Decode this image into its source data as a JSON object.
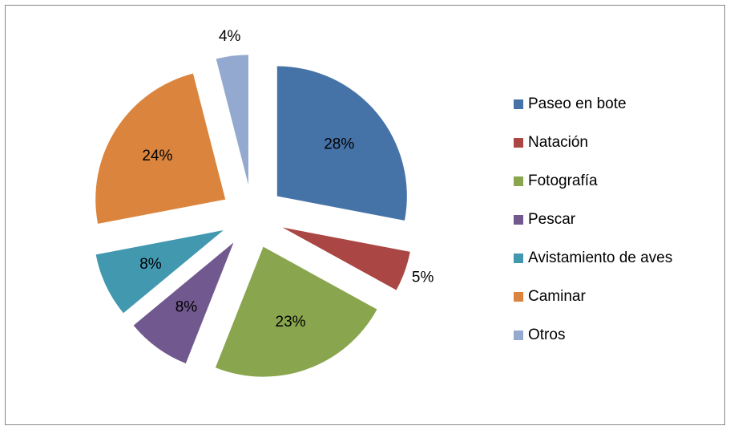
{
  "chart_data": {
    "type": "pie",
    "categories": [
      "Paseo en bote",
      "Natación",
      "Fotografía",
      "Pescar",
      "Avistamiento de aves",
      "Caminar",
      "Otros"
    ],
    "values": [
      28,
      5,
      23,
      8,
      8,
      24,
      4
    ],
    "value_labels": [
      "28%",
      "5%",
      "23%",
      "8%",
      "8%",
      "24%",
      "4%"
    ],
    "colors": [
      "#4572a7",
      "#aa4643",
      "#89a54e",
      "#71588f",
      "#4198af",
      "#db843d",
      "#93a9cf"
    ],
    "exploded": true,
    "legend": "right"
  }
}
